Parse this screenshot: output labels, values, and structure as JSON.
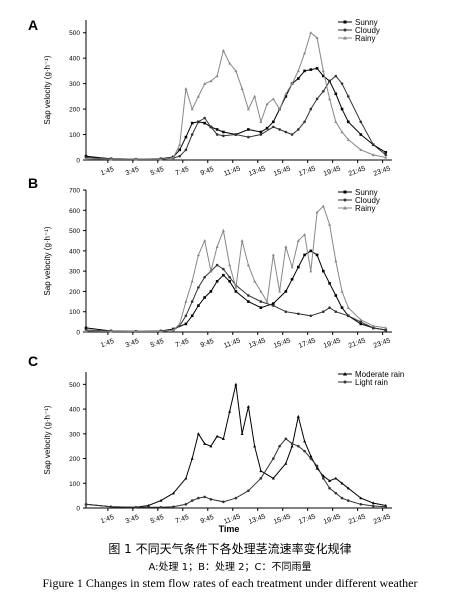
{
  "chart_data": [
    {
      "type": "line",
      "panel_label": "A",
      "ylabel": "Sap velocity (g·h⁻¹)",
      "xlabel": "",
      "ylim": [
        0,
        550
      ],
      "yticks": [
        0,
        100,
        200,
        300,
        400,
        500
      ],
      "x_tick_labels": [
        "1:45",
        "3:45",
        "5:45",
        "7:45",
        "9:45",
        "11:45",
        "13:45",
        "15:45",
        "17:45",
        "19:45",
        "21:45",
        "23:45"
      ],
      "x_tick_hours": [
        1.75,
        3.75,
        5.75,
        7.75,
        9.75,
        11.75,
        13.75,
        15.75,
        17.75,
        19.75,
        21.75,
        23.75
      ],
      "xlim_hours": [
        0,
        24.5
      ],
      "legend_position": "top-right",
      "series": [
        {
          "name": "Sunny",
          "marker": "square",
          "x": [
            0,
            2,
            4,
            6,
            7,
            7.5,
            8,
            8.5,
            9,
            9.5,
            10,
            10.5,
            11,
            12,
            13,
            14,
            14.5,
            15,
            15.5,
            16,
            16.5,
            17,
            17.5,
            18,
            18.5,
            19,
            19.5,
            20,
            20.5,
            21,
            22,
            23,
            24
          ],
          "y": [
            15,
            5,
            3,
            5,
            12,
            40,
            90,
            145,
            150,
            145,
            130,
            120,
            110,
            100,
            120,
            110,
            125,
            150,
            200,
            250,
            300,
            320,
            350,
            355,
            360,
            330,
            310,
            260,
            200,
            150,
            100,
            60,
            30
          ]
        },
        {
          "name": "Cloudy",
          "marker": "circle",
          "x": [
            0,
            2,
            4,
            6,
            7,
            7.5,
            8,
            8.5,
            9,
            9.5,
            10,
            10.5,
            11,
            12,
            13,
            14,
            15,
            15.5,
            16,
            16.5,
            17,
            17.5,
            18,
            18.5,
            19,
            19.5,
            20,
            20.5,
            21,
            22,
            23,
            24
          ],
          "y": [
            10,
            5,
            3,
            3,
            8,
            15,
            40,
            100,
            150,
            165,
            130,
            100,
            95,
            100,
            90,
            100,
            130,
            120,
            110,
            100,
            120,
            150,
            200,
            240,
            270,
            310,
            330,
            300,
            250,
            150,
            60,
            20
          ]
        },
        {
          "name": "Rainy",
          "marker": "triangle",
          "x": [
            0,
            2,
            4,
            6,
            7,
            7.5,
            8,
            8.5,
            9,
            9.5,
            10,
            10.5,
            11,
            11.5,
            12,
            12.5,
            13,
            13.5,
            14,
            14.5,
            15,
            15.5,
            16,
            16.5,
            17,
            17.5,
            18,
            18.5,
            19,
            19.5,
            20,
            20.5,
            21,
            22,
            23,
            24
          ],
          "y": [
            5,
            3,
            3,
            3,
            10,
            60,
            280,
            200,
            250,
            300,
            310,
            330,
            430,
            380,
            350,
            280,
            200,
            250,
            150,
            220,
            240,
            200,
            260,
            300,
            350,
            420,
            500,
            480,
            350,
            240,
            150,
            110,
            80,
            40,
            20,
            10
          ]
        }
      ]
    },
    {
      "type": "line",
      "panel_label": "B",
      "ylabel": "Sap velocity (g·h⁻¹)",
      "xlabel": "",
      "ylim": [
        0,
        700
      ],
      "yticks": [
        0,
        100,
        200,
        300,
        400,
        500,
        600,
        700
      ],
      "x_tick_labels": [
        "1:45",
        "3:45",
        "5:45",
        "7:45",
        "9:45",
        "11:45",
        "13:45",
        "15:45",
        "17:45",
        "19:45",
        "21:45",
        "23:45"
      ],
      "x_tick_hours": [
        1.75,
        3.75,
        5.75,
        7.75,
        9.75,
        11.75,
        13.75,
        15.75,
        17.75,
        19.75,
        21.75,
        23.75
      ],
      "xlim_hours": [
        0,
        24.5
      ],
      "legend_position": "top-right",
      "series": [
        {
          "name": "Sunny",
          "marker": "square",
          "x": [
            0,
            2,
            4,
            6,
            7,
            8,
            8.5,
            9,
            9.5,
            10,
            10.5,
            11,
            11.5,
            12,
            13,
            14,
            15,
            16,
            16.5,
            17,
            17.5,
            18,
            18.5,
            19,
            19.5,
            20,
            20.5,
            21,
            22,
            23,
            24
          ],
          "y": [
            20,
            5,
            3,
            5,
            15,
            40,
            80,
            130,
            170,
            200,
            250,
            280,
            250,
            200,
            150,
            120,
            140,
            200,
            260,
            320,
            380,
            400,
            380,
            300,
            240,
            180,
            120,
            80,
            40,
            20,
            10
          ]
        },
        {
          "name": "Cloudy",
          "marker": "circle",
          "x": [
            0,
            2,
            4,
            6,
            7,
            7.5,
            8,
            8.5,
            9,
            9.5,
            10,
            10.5,
            11,
            11.5,
            12,
            13,
            14,
            15,
            16,
            17,
            18,
            19,
            19.5,
            20,
            21,
            22,
            23,
            24
          ],
          "y": [
            10,
            5,
            3,
            3,
            10,
            30,
            80,
            150,
            220,
            270,
            300,
            330,
            310,
            270,
            230,
            180,
            150,
            130,
            100,
            90,
            80,
            100,
            120,
            100,
            80,
            50,
            20,
            10
          ]
        },
        {
          "name": "Rainy",
          "marker": "triangle",
          "x": [
            0,
            2,
            4,
            6,
            7,
            7.5,
            8,
            8.5,
            9,
            9.5,
            10,
            10.5,
            11,
            11.5,
            12,
            12.5,
            13,
            13.5,
            14,
            14.5,
            15,
            15.5,
            16,
            16.5,
            17,
            17.5,
            18,
            18.5,
            19,
            19.5,
            20,
            20.5,
            21,
            22,
            23,
            24
          ],
          "y": [
            5,
            3,
            3,
            3,
            10,
            40,
            150,
            250,
            380,
            450,
            300,
            420,
            500,
            330,
            220,
            450,
            330,
            250,
            200,
            150,
            380,
            200,
            420,
            320,
            450,
            480,
            300,
            590,
            620,
            530,
            350,
            200,
            120,
            60,
            30,
            20
          ]
        }
      ]
    },
    {
      "type": "line",
      "panel_label": "C",
      "ylabel": "Sap velocity (g·h⁻¹)",
      "xlabel": "Time",
      "ylim": [
        0,
        550
      ],
      "yticks": [
        0,
        100,
        200,
        300,
        400,
        500
      ],
      "x_tick_labels": [
        "1:45",
        "3:45",
        "5:45",
        "7:45",
        "9:45",
        "11:45",
        "13:45",
        "15:45",
        "17:45",
        "19:45",
        "21:45",
        "23:45"
      ],
      "x_tick_hours": [
        1.75,
        3.75,
        5.75,
        7.75,
        9.75,
        11.75,
        13.75,
        15.75,
        17.75,
        19.75,
        21.75,
        23.75
      ],
      "xlim_hours": [
        0,
        24.5
      ],
      "legend_position": "top-right",
      "series": [
        {
          "name": "Moderate rain",
          "marker": "triangle",
          "x": [
            0,
            2,
            4,
            5,
            6,
            7,
            8,
            8.5,
            9,
            9.5,
            10,
            10.5,
            11,
            11.5,
            12,
            12.5,
            13,
            13.5,
            14,
            15,
            16,
            16.5,
            17,
            17.5,
            18,
            18.5,
            19,
            19.5,
            20,
            20.5,
            21,
            22,
            23,
            24
          ],
          "y": [
            15,
            5,
            3,
            10,
            30,
            60,
            120,
            200,
            300,
            260,
            250,
            290,
            280,
            390,
            500,
            300,
            410,
            250,
            150,
            120,
            180,
            250,
            370,
            270,
            210,
            160,
            130,
            110,
            120,
            100,
            80,
            40,
            20,
            10
          ]
        },
        {
          "name": "Light rain",
          "marker": "circle",
          "x": [
            0,
            2,
            4,
            6,
            7,
            8,
            8.5,
            9,
            9.5,
            10,
            11,
            12,
            13,
            14,
            15,
            15.5,
            16,
            16.5,
            17,
            17.5,
            18,
            18.5,
            19,
            19.5,
            20,
            20.5,
            21,
            22,
            23,
            24
          ],
          "y": [
            15,
            5,
            3,
            3,
            5,
            15,
            30,
            40,
            45,
            35,
            25,
            40,
            70,
            120,
            200,
            250,
            280,
            260,
            250,
            230,
            200,
            170,
            120,
            80,
            60,
            40,
            30,
            15,
            8,
            5
          ]
        }
      ]
    }
  ],
  "captions": {
    "figure_cn": "图 1  不同天气条件下各处理茎流速率变化规律",
    "sub_cn": "A:处理 1；B：处理 2；C：不同雨量",
    "figure_en": "Figure 1 Changes in stem flow rates of each treatment under different weather"
  }
}
